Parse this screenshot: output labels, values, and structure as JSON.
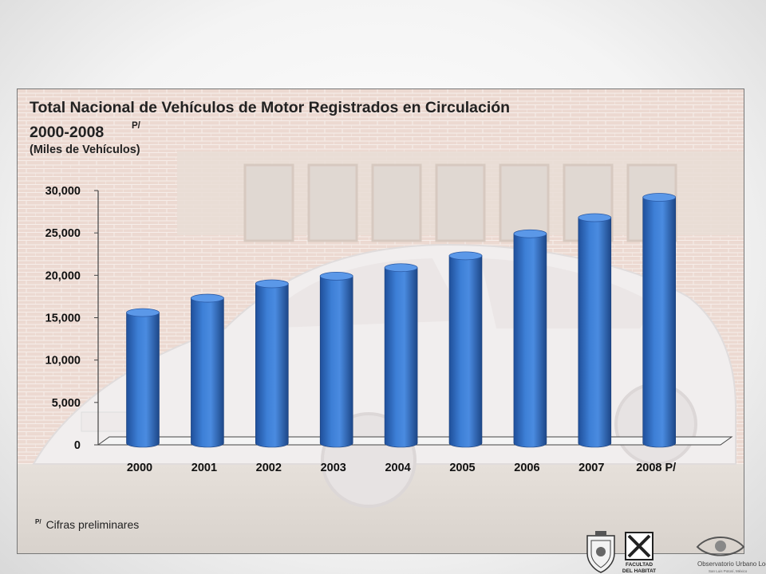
{
  "slide": {
    "title_line1": "Total Nacional de Vehículos de Motor Registrados en Circulación",
    "title_line2": "2000-2008",
    "title_sup": "P/",
    "subtitle": "(Miles de Vehículos)",
    "footnote_mark": "P/",
    "footnote_text": "Cifras preliminares"
  },
  "logos": {
    "faculty_label_1": "FACULTAD",
    "faculty_label_2": "DEL HABITAT",
    "observatory_label": "Observatorio Urbano Local",
    "observatory_sub": "San Luis Potosí, México"
  },
  "chart_data": {
    "type": "bar",
    "title": "Total Nacional de Vehículos de Motor Registrados en Circulación 2000-2008P/",
    "subtitle": "(Miles de Vehículos)",
    "categories": [
      "2000",
      "2001",
      "2002",
      "2003",
      "2004",
      "2005",
      "2006",
      "2007",
      "2008 P/"
    ],
    "values": [
      15600,
      17300,
      19000,
      19900,
      20900,
      22300,
      24900,
      26800,
      29200
    ],
    "ylim": [
      0,
      30000
    ],
    "yticks": [
      "0",
      "5,000",
      "10,000",
      "15,000",
      "20,000",
      "25,000",
      "30,000"
    ],
    "ytick_values": [
      0,
      5000,
      10000,
      15000,
      20000,
      25000,
      30000
    ],
    "bar_color": "#3a78cc",
    "grid": false,
    "legend": "none"
  }
}
